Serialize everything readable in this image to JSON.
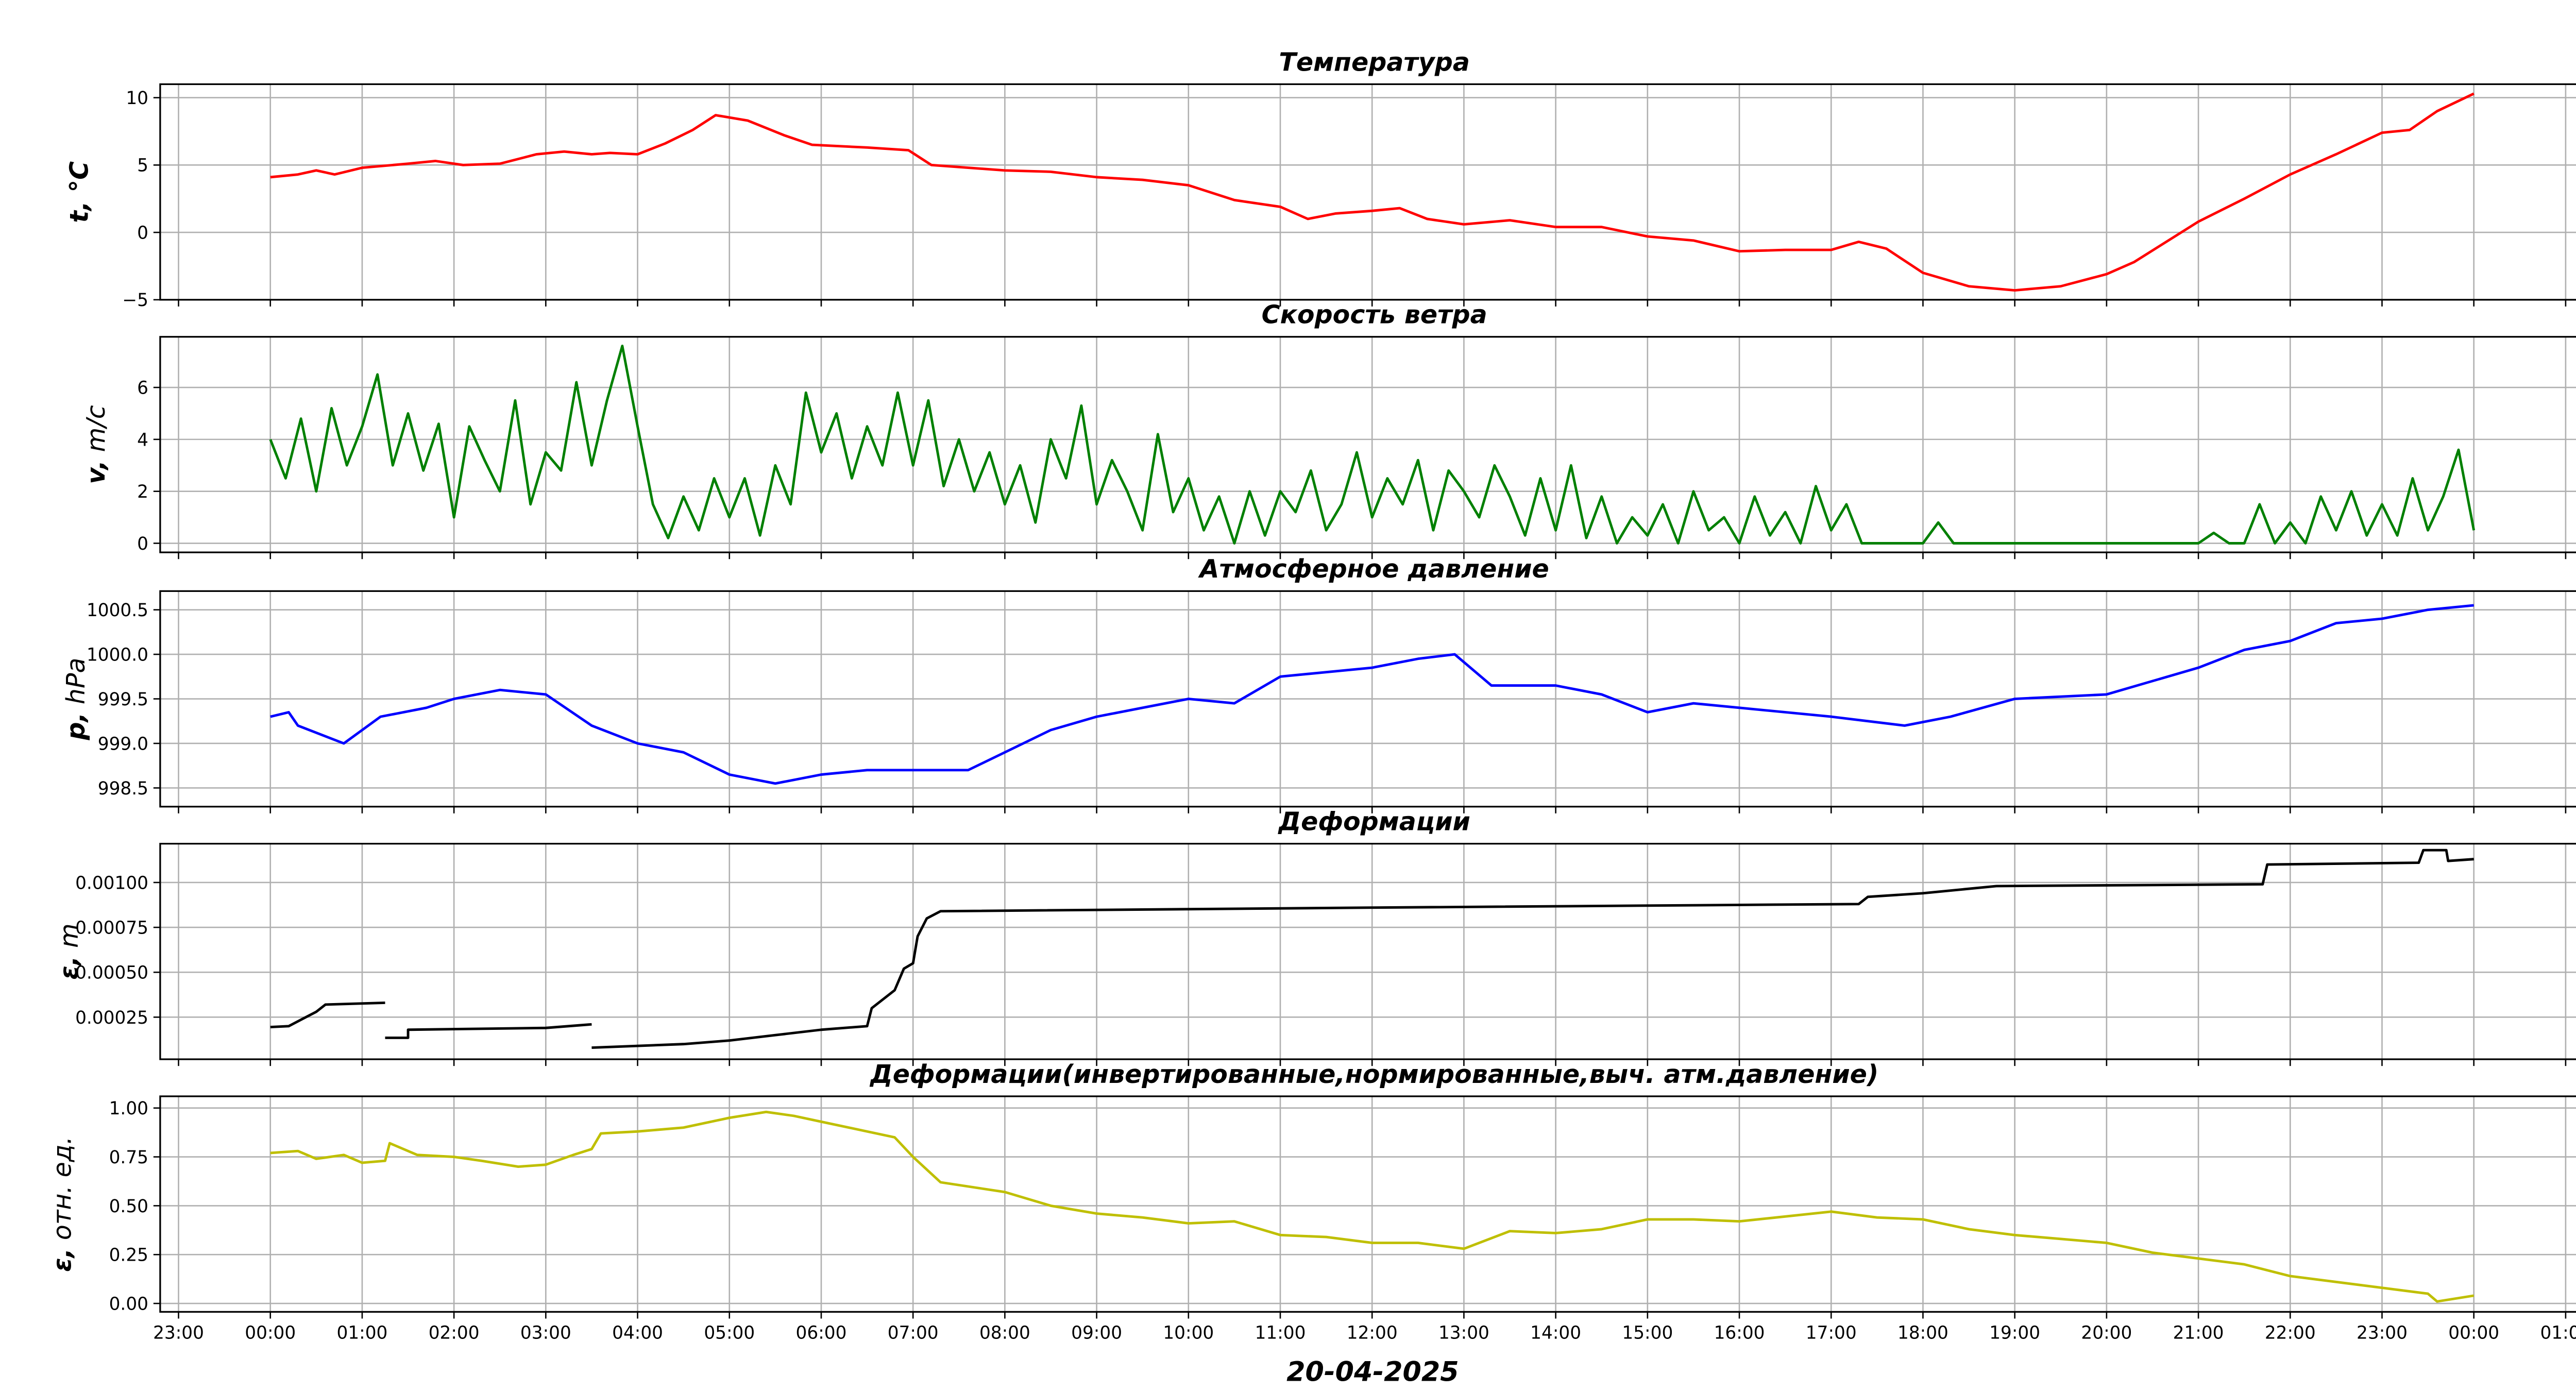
{
  "chart_data": [
    {
      "type": "line",
      "title": "Температура",
      "ylabel": "t, °C",
      "ylabel_bold": "t,",
      "ylabel_rest": " ∘C",
      "color": "#ff0000",
      "ylim": [
        -5,
        11
      ],
      "yticks": [
        {
          "v": -5,
          "label": "−5"
        },
        {
          "v": 0,
          "label": "0"
        },
        {
          "v": 5,
          "label": "5"
        },
        {
          "v": 10,
          "label": "10"
        }
      ],
      "segments": [
        [
          [
            0,
            4.1
          ],
          [
            0.3,
            4.3
          ],
          [
            0.5,
            4.6
          ],
          [
            0.7,
            4.3
          ],
          [
            1.0,
            4.8
          ],
          [
            1.5,
            5.1
          ],
          [
            1.8,
            5.3
          ],
          [
            2.1,
            5.0
          ],
          [
            2.5,
            5.1
          ],
          [
            2.9,
            5.8
          ],
          [
            3.2,
            6.0
          ],
          [
            3.5,
            5.8
          ],
          [
            3.7,
            5.9
          ],
          [
            4.0,
            5.8
          ],
          [
            4.3,
            6.6
          ],
          [
            4.6,
            7.6
          ],
          [
            4.85,
            8.7
          ],
          [
            5.2,
            8.3
          ],
          [
            5.6,
            7.2
          ],
          [
            5.9,
            6.5
          ],
          [
            6.5,
            6.3
          ],
          [
            6.95,
            6.1
          ],
          [
            7.2,
            5.0
          ],
          [
            8.0,
            4.6
          ],
          [
            8.5,
            4.5
          ],
          [
            9.0,
            4.1
          ],
          [
            9.5,
            3.9
          ],
          [
            10.0,
            3.5
          ],
          [
            10.5,
            2.4
          ],
          [
            11.0,
            1.9
          ],
          [
            11.3,
            1.0
          ],
          [
            11.6,
            1.4
          ],
          [
            12.0,
            1.6
          ],
          [
            12.3,
            1.8
          ],
          [
            12.6,
            1.0
          ],
          [
            13.0,
            0.6
          ],
          [
            13.5,
            0.9
          ],
          [
            14.0,
            0.4
          ],
          [
            14.5,
            0.4
          ],
          [
            15.0,
            -0.3
          ],
          [
            15.5,
            -0.6
          ],
          [
            16.0,
            -1.4
          ],
          [
            16.5,
            -1.3
          ],
          [
            17.0,
            -1.3
          ],
          [
            17.3,
            -0.7
          ],
          [
            17.6,
            -1.2
          ],
          [
            18.0,
            -3.0
          ],
          [
            18.5,
            -4.0
          ],
          [
            19.0,
            -4.3
          ],
          [
            19.5,
            -4.0
          ],
          [
            20.0,
            -3.1
          ],
          [
            20.3,
            -2.2
          ],
          [
            21.0,
            0.8
          ],
          [
            21.5,
            2.5
          ],
          [
            22.0,
            4.3
          ],
          [
            22.5,
            5.8
          ],
          [
            23.0,
            7.4
          ],
          [
            23.3,
            7.6
          ],
          [
            23.6,
            9.0
          ],
          [
            24.0,
            10.3
          ]
        ]
      ]
    },
    {
      "type": "line",
      "title": "Скорость ветра",
      "ylabel": "v, m/c",
      "ylabel_bold": "v,",
      "ylabel_rest": " m/c",
      "color": "#008000",
      "ylim": [
        -0.35,
        7.95
      ],
      "yticks": [
        {
          "v": 0,
          "label": "0"
        },
        {
          "v": 2,
          "label": "2"
        },
        {
          "v": 4,
          "label": "4"
        },
        {
          "v": 6,
          "label": "6"
        }
      ],
      "x_start": 0,
      "x_end": 24,
      "values": [
        4.0,
        2.5,
        4.8,
        2.0,
        5.2,
        3.0,
        4.5,
        6.5,
        3.0,
        5.0,
        2.8,
        4.6,
        1.0,
        4.5,
        3.2,
        2.0,
        5.5,
        1.5,
        3.5,
        2.8,
        6.2,
        3.0,
        5.5,
        7.6,
        4.5,
        1.5,
        0.2,
        1.8,
        0.5,
        2.5,
        1.0,
        2.5,
        0.3,
        3.0,
        1.5,
        5.8,
        3.5,
        5.0,
        2.5,
        4.5,
        3.0,
        5.8,
        3.0,
        5.5,
        2.2,
        4.0,
        2.0,
        3.5,
        1.5,
        3.0,
        0.8,
        4.0,
        2.5,
        5.3,
        1.5,
        3.2,
        2.0,
        0.5,
        4.2,
        1.2,
        2.5,
        0.5,
        1.8,
        0,
        2.0,
        0.3,
        2.0,
        1.2,
        2.8,
        0.5,
        1.5,
        3.5,
        1.0,
        2.5,
        1.5,
        3.2,
        0.5,
        2.8,
        2.0,
        1.0,
        3.0,
        1.8,
        0.3,
        2.5,
        0.5,
        3.0,
        0.2,
        1.8,
        0,
        1.0,
        0.3,
        1.5,
        0,
        2.0,
        0.5,
        1.0,
        0,
        1.8,
        0.3,
        1.2,
        0,
        2.2,
        0.5,
        1.5,
        0,
        0,
        0,
        0,
        0,
        0.8,
        0,
        0,
        0,
        0,
        0,
        0,
        0,
        0,
        0,
        0,
        0,
        0,
        0,
        0,
        0,
        0,
        0,
        0.4,
        0,
        0,
        1.5,
        0,
        0.8,
        0,
        1.8,
        0.5,
        2.0,
        0.3,
        1.5,
        0.3,
        2.5,
        0.5,
        1.8,
        3.6,
        0.5
      ]
    },
    {
      "type": "line",
      "title": "Атмосферное давление",
      "ylabel": "p, hPa",
      "ylabel_bold": "p,",
      "ylabel_rest": " hPa",
      "color": "#0000ff",
      "ylim": [
        998.29,
        1000.71
      ],
      "yticks": [
        {
          "v": 998.5,
          "label": "998.5"
        },
        {
          "v": 999.0,
          "label": "999.0"
        },
        {
          "v": 999.5,
          "label": "999.5"
        },
        {
          "v": 1000.0,
          "label": "1000.0"
        },
        {
          "v": 1000.5,
          "label": "1000.5"
        }
      ],
      "segments": [
        [
          [
            0,
            999.3
          ],
          [
            0.2,
            999.35
          ],
          [
            0.3,
            999.2
          ],
          [
            0.8,
            999.0
          ],
          [
            1.2,
            999.3
          ],
          [
            1.7,
            999.4
          ],
          [
            2.0,
            999.5
          ],
          [
            2.5,
            999.6
          ],
          [
            3.0,
            999.55
          ],
          [
            3.5,
            999.2
          ],
          [
            4.0,
            999.0
          ],
          [
            4.5,
            998.9
          ],
          [
            5.0,
            998.65
          ],
          [
            5.5,
            998.55
          ],
          [
            6.0,
            998.65
          ],
          [
            6.5,
            998.7
          ],
          [
            7.0,
            998.7
          ],
          [
            7.6,
            998.7
          ],
          [
            8.0,
            998.9
          ],
          [
            8.5,
            999.15
          ],
          [
            9.0,
            999.3
          ],
          [
            9.5,
            999.4
          ],
          [
            10.0,
            999.5
          ],
          [
            10.5,
            999.45
          ],
          [
            11.0,
            999.75
          ],
          [
            11.5,
            999.8
          ],
          [
            12.0,
            999.85
          ],
          [
            12.5,
            999.95
          ],
          [
            12.9,
            1000.0
          ],
          [
            13.3,
            999.65
          ],
          [
            14.0,
            999.65
          ],
          [
            14.5,
            999.55
          ],
          [
            15.0,
            999.35
          ],
          [
            15.5,
            999.45
          ],
          [
            16.0,
            999.4
          ],
          [
            17.0,
            999.3
          ],
          [
            17.8,
            999.2
          ],
          [
            18.3,
            999.3
          ],
          [
            19.0,
            999.5
          ],
          [
            20.0,
            999.55
          ],
          [
            20.5,
            999.7
          ],
          [
            21.0,
            999.85
          ],
          [
            21.5,
            1000.05
          ],
          [
            22.0,
            1000.15
          ],
          [
            22.5,
            1000.35
          ],
          [
            23.0,
            1000.4
          ],
          [
            23.5,
            1000.5
          ],
          [
            24.0,
            1000.55
          ]
        ]
      ]
    },
    {
      "type": "line",
      "title": "Деформации",
      "ylabel": "ε, m",
      "ylabel_bold": "ε,",
      "ylabel_rest": " m",
      "color": "#000000",
      "ylim": [
        1.56e-05,
        0.001216
      ],
      "yticks": [
        {
          "v": 0.00025,
          "label": "0.00025"
        },
        {
          "v": 0.0005,
          "label": "0.00050"
        },
        {
          "v": 0.00075,
          "label": "0.00075"
        },
        {
          "v": 0.001,
          "label": "0.00100"
        }
      ],
      "segments": [
        [
          [
            0,
            0.000195
          ],
          [
            0.2,
            0.0002
          ],
          [
            0.35,
            0.00024
          ],
          [
            0.5,
            0.00028
          ],
          [
            0.6,
            0.00032
          ],
          [
            1.25,
            0.00033
          ]
        ],
        [
          [
            1.25,
            0.000135
          ],
          [
            1.5,
            0.000135
          ],
          [
            1.5,
            0.00018
          ],
          [
            3.0,
            0.00019
          ],
          [
            3.5,
            0.00021
          ]
        ],
        [
          [
            3.5,
            8e-05
          ],
          [
            4.5,
            0.0001
          ],
          [
            5.0,
            0.00012
          ],
          [
            5.5,
            0.00015
          ],
          [
            6.0,
            0.00018
          ],
          [
            6.5,
            0.0002
          ],
          [
            6.55,
            0.0003
          ],
          [
            6.8,
            0.0004
          ],
          [
            6.9,
            0.00052
          ],
          [
            7.0,
            0.00055
          ],
          [
            7.05,
            0.0007
          ],
          [
            7.15,
            0.0008
          ],
          [
            7.3,
            0.00084
          ],
          [
            12.0,
            0.00086
          ],
          [
            17.3,
            0.00088
          ],
          [
            17.4,
            0.00092
          ],
          [
            18.0,
            0.00094
          ],
          [
            18.8,
            0.00098
          ],
          [
            21.7,
            0.00099
          ],
          [
            21.75,
            0.0011
          ],
          [
            23.4,
            0.00111
          ],
          [
            23.45,
            0.00118
          ],
          [
            23.7,
            0.00118
          ],
          [
            23.72,
            0.00112
          ],
          [
            24.0,
            0.00113
          ]
        ]
      ]
    },
    {
      "type": "line",
      "title": "Деформации(инвертированные,нормированные,выч. атм.давление)",
      "ylabel": "ε, отн. ед.",
      "ylabel_bold": "ε,",
      "ylabel_rest": " отн. ед.",
      "color": "#bfbf00",
      "ylim": [
        -0.043,
        1.06
      ],
      "yticks": [
        {
          "v": 0,
          "label": "0.00"
        },
        {
          "v": 0.25,
          "label": "0.25"
        },
        {
          "v": 0.5,
          "label": "0.50"
        },
        {
          "v": 0.75,
          "label": "0.75"
        },
        {
          "v": 1.0,
          "label": "1.00"
        }
      ],
      "segments": [
        [
          [
            0,
            0.77
          ],
          [
            0.3,
            0.78
          ],
          [
            0.5,
            0.74
          ],
          [
            0.8,
            0.76
          ],
          [
            1.0,
            0.72
          ],
          [
            1.25,
            0.73
          ],
          [
            1.3,
            0.82
          ],
          [
            1.6,
            0.76
          ],
          [
            2.0,
            0.75
          ],
          [
            2.3,
            0.73
          ],
          [
            2.7,
            0.7
          ],
          [
            3.0,
            0.71
          ],
          [
            3.3,
            0.76
          ],
          [
            3.5,
            0.79
          ],
          [
            3.6,
            0.87
          ],
          [
            4.0,
            0.88
          ],
          [
            4.5,
            0.9
          ],
          [
            5.0,
            0.95
          ],
          [
            5.4,
            0.98
          ],
          [
            5.7,
            0.96
          ],
          [
            6.0,
            0.93
          ],
          [
            6.5,
            0.88
          ],
          [
            6.8,
            0.85
          ],
          [
            7.0,
            0.75
          ],
          [
            7.3,
            0.62
          ],
          [
            8.0,
            0.57
          ],
          [
            8.5,
            0.5
          ],
          [
            9.0,
            0.46
          ],
          [
            9.5,
            0.44
          ],
          [
            10.0,
            0.41
          ],
          [
            10.5,
            0.42
          ],
          [
            11.0,
            0.35
          ],
          [
            11.5,
            0.34
          ],
          [
            12.0,
            0.31
          ],
          [
            12.5,
            0.31
          ],
          [
            13.0,
            0.28
          ],
          [
            13.5,
            0.37
          ],
          [
            14.0,
            0.36
          ],
          [
            14.5,
            0.38
          ],
          [
            15.0,
            0.43
          ],
          [
            15.5,
            0.43
          ],
          [
            16.0,
            0.42
          ],
          [
            17.0,
            0.47
          ],
          [
            17.5,
            0.44
          ],
          [
            18.0,
            0.43
          ],
          [
            18.5,
            0.38
          ],
          [
            19.0,
            0.35
          ],
          [
            19.5,
            0.33
          ],
          [
            20.0,
            0.31
          ],
          [
            20.5,
            0.26
          ],
          [
            21.0,
            0.23
          ],
          [
            21.5,
            0.2
          ],
          [
            22.0,
            0.14
          ],
          [
            22.5,
            0.11
          ],
          [
            23.0,
            0.08
          ],
          [
            23.5,
            0.05
          ],
          [
            23.6,
            0.01
          ],
          [
            24.0,
            0.04
          ]
        ]
      ]
    }
  ],
  "xaxis": {
    "label": "20-04-2025",
    "xlim_hours": [
      -1.2,
      25.25
    ],
    "ticks": [
      {
        "h": -1,
        "label": "23:00"
      },
      {
        "h": 0,
        "label": "00:00"
      },
      {
        "h": 1,
        "label": "01:00"
      },
      {
        "h": 2,
        "label": "02:00"
      },
      {
        "h": 3,
        "label": "03:00"
      },
      {
        "h": 4,
        "label": "04:00"
      },
      {
        "h": 5,
        "label": "05:00"
      },
      {
        "h": 6,
        "label": "06:00"
      },
      {
        "h": 7,
        "label": "07:00"
      },
      {
        "h": 8,
        "label": "08:00"
      },
      {
        "h": 9,
        "label": "09:00"
      },
      {
        "h": 10,
        "label": "10:00"
      },
      {
        "h": 11,
        "label": "11:00"
      },
      {
        "h": 12,
        "label": "12:00"
      },
      {
        "h": 13,
        "label": "13:00"
      },
      {
        "h": 14,
        "label": "14:00"
      },
      {
        "h": 15,
        "label": "15:00"
      },
      {
        "h": 16,
        "label": "16:00"
      },
      {
        "h": 17,
        "label": "17:00"
      },
      {
        "h": 18,
        "label": "18:00"
      },
      {
        "h": 19,
        "label": "19:00"
      },
      {
        "h": 20,
        "label": "20:00"
      },
      {
        "h": 21,
        "label": "21:00"
      },
      {
        "h": 22,
        "label": "22:00"
      },
      {
        "h": 23,
        "label": "23:00"
      },
      {
        "h": 24,
        "label": "00:00"
      },
      {
        "h": 25,
        "label": "01:00"
      }
    ]
  },
  "grid": true
}
